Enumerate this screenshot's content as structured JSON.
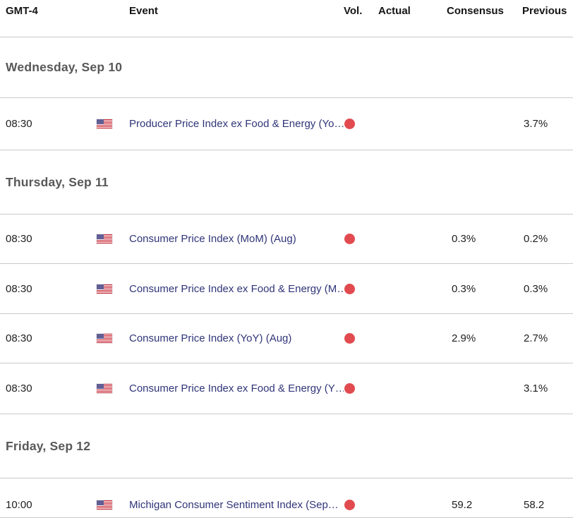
{
  "header": {
    "columns": [
      "GMT-4",
      "Event",
      "Vol.",
      "Actual",
      "Consensus",
      "Previous"
    ]
  },
  "sections": [
    {
      "day_label": "Wednesday, Sep 10",
      "rows": [
        {
          "time": "08:30",
          "country": "United States",
          "event": "Producer Price Index ex Food & Energy (Yo…",
          "volatility": "high",
          "actual": "",
          "consensus": "",
          "previous": "3.7%"
        }
      ]
    },
    {
      "day_label": "Thursday, Sep 11",
      "rows": [
        {
          "time": "08:30",
          "country": "United States",
          "event": "Consumer Price Index (MoM) (Aug)",
          "volatility": "high",
          "actual": "",
          "consensus": "0.3%",
          "previous": "0.2%"
        },
        {
          "time": "08:30",
          "country": "United States",
          "event": "Consumer Price Index ex Food & Energy (M…",
          "volatility": "high",
          "actual": "",
          "consensus": "0.3%",
          "previous": "0.3%"
        },
        {
          "time": "08:30",
          "country": "United States",
          "event": "Consumer Price Index (YoY) (Aug)",
          "volatility": "high",
          "actual": "",
          "consensus": "2.9%",
          "previous": "2.7%"
        },
        {
          "time": "08:30",
          "country": "United States",
          "event": "Consumer Price Index ex Food & Energy (Y…",
          "volatility": "high",
          "actual": "",
          "consensus": "",
          "previous": "3.1%"
        }
      ]
    },
    {
      "day_label": "Friday, Sep 12",
      "rows": [
        {
          "time": "10:00",
          "country": "United States",
          "event": "Michigan Consumer Sentiment Index (Sep…",
          "volatility": "high",
          "actual": "",
          "consensus": "59.2",
          "previous": "58.2"
        }
      ]
    }
  ],
  "colors": {
    "volatility_high_dot": "#e14b50",
    "event_link": "#303578",
    "day_label_text": "#58585a",
    "divider": "#c9c9c9",
    "flag_red": "#c6202e",
    "flag_blue": "#2e2a73"
  }
}
